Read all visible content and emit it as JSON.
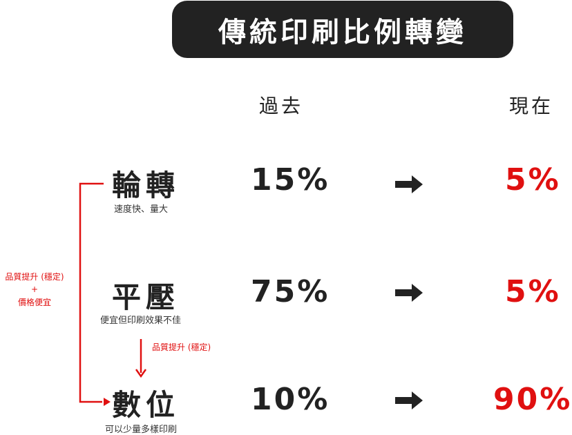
{
  "header": {
    "title": "傳統印刷比例轉變"
  },
  "columns": {
    "past": "過去",
    "now": "現在"
  },
  "rows": [
    {
      "name": "輪轉",
      "desc": "速度快、量大",
      "past": "15%",
      "now": "5%"
    },
    {
      "name": "平壓",
      "desc": "便宜但印刷效果不佳",
      "past": "75%",
      "now": "5%"
    },
    {
      "name": "數位",
      "desc": "可以少量多樣印刷",
      "past": "10%",
      "now": "90%"
    }
  ],
  "left_note": {
    "line1": "品質提升 (穩定)",
    "line2": "+",
    "line3": "價格便宜"
  },
  "middle_note": "品質提升 (穩定)",
  "colors": {
    "accent": "#e01010",
    "dark": "#222222",
    "bg": "#ffffff"
  },
  "icons": {
    "trend": "right-arrow-icon"
  }
}
